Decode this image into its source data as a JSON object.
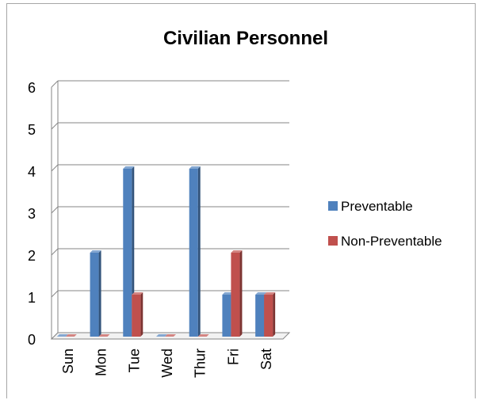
{
  "chart_data": {
    "type": "bar",
    "style": "3d-clustered-column",
    "title": "Civilian Personnel",
    "xlabel": "",
    "ylabel": "",
    "categories": [
      "Sun",
      "Mon",
      "Tue",
      "Wed",
      "Thur",
      "Fri",
      "Sat"
    ],
    "series": [
      {
        "name": "Preventable",
        "color": "#4f81bd",
        "values": [
          0,
          2,
          4,
          0,
          4,
          1,
          1
        ]
      },
      {
        "name": "Non-Preventable",
        "color": "#c0504d",
        "values": [
          0,
          0,
          1,
          0,
          0,
          2,
          1
        ]
      }
    ],
    "ylim": [
      0,
      6
    ],
    "yticks": [
      0,
      1,
      2,
      3,
      4,
      5,
      6
    ],
    "grid": true,
    "legend": "right"
  }
}
